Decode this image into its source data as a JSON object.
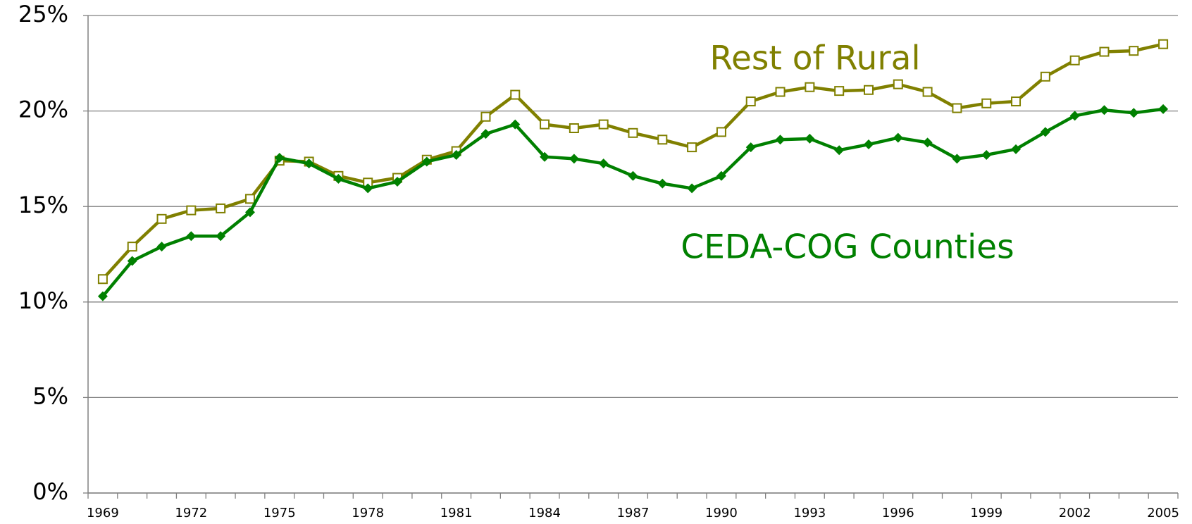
{
  "chart_data": {
    "type": "line",
    "categories": [
      "1969",
      null,
      null,
      "1972",
      null,
      null,
      "1975",
      null,
      null,
      "1978",
      null,
      null,
      "1981",
      null,
      null,
      "1984",
      null,
      null,
      "1987",
      null,
      null,
      "1990",
      null,
      null,
      "1993",
      null,
      null,
      "1996",
      null,
      null,
      "1999",
      null,
      null,
      "2002",
      null,
      null,
      "2005"
    ],
    "series": [
      {
        "name": "Rest of Rural",
        "color": "#808000",
        "marker": "square",
        "values": [
          11.2,
          12.9,
          14.35,
          14.8,
          14.9,
          15.4,
          17.4,
          17.35,
          16.6,
          16.25,
          16.5,
          17.45,
          17.9,
          19.7,
          20.85,
          19.3,
          19.1,
          19.3,
          18.85,
          18.5,
          18.1,
          18.9,
          20.5,
          21.0,
          21.25,
          21.05,
          21.1,
          21.4,
          21.0,
          20.15,
          20.4,
          20.5,
          21.8,
          22.65,
          23.1,
          23.15,
          23.5
        ]
      },
      {
        "name": "CEDA-COG Counties",
        "color": "#008000",
        "marker": "diamond",
        "values": [
          10.3,
          12.15,
          12.9,
          13.45,
          13.45,
          14.7,
          17.55,
          17.25,
          16.45,
          15.95,
          16.3,
          17.35,
          17.7,
          18.8,
          19.3,
          17.6,
          17.5,
          17.25,
          16.6,
          16.2,
          15.95,
          16.6,
          18.1,
          18.5,
          18.55,
          17.95,
          18.25,
          18.6,
          18.35,
          17.5,
          17.7,
          18.0,
          18.9,
          19.75,
          20.05,
          19.9,
          20.1
        ]
      }
    ],
    "ylim": [
      0,
      25
    ],
    "yticks": [
      {
        "value": 0,
        "label": "0%"
      },
      {
        "value": 5,
        "label": "5%"
      },
      {
        "value": 10,
        "label": "10%"
      },
      {
        "value": 15,
        "label": "15%"
      },
      {
        "value": 20,
        "label": "20%"
      },
      {
        "value": 25,
        "label": "25%"
      }
    ],
    "grid": true
  }
}
